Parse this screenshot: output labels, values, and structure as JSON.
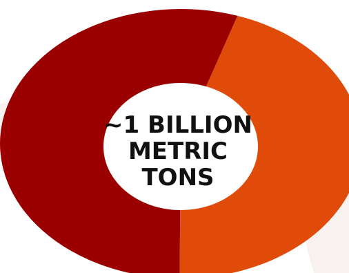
{
  "chart_data": {
    "type": "pie",
    "style": "donut",
    "slices": [
      {
        "value": 55,
        "color": "#9b0000"
      },
      {
        "value": 45,
        "color": "#e04b0a"
      }
    ],
    "center_label": {
      "lines": [
        "~1 BILLION",
        "METRIC",
        "TONS"
      ]
    }
  },
  "colors": {
    "background": "#ffffff",
    "background_texture": "#f8eeee",
    "hole": "#ffffff",
    "text": "#111111"
  }
}
